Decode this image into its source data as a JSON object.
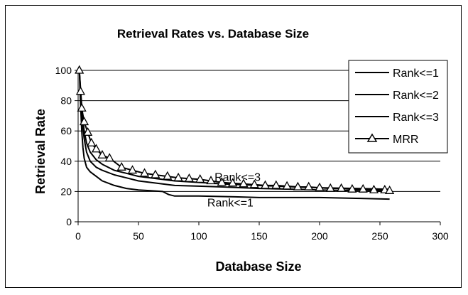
{
  "chart_data": {
    "type": "line",
    "title": "Retrieval Rates vs. Database Size",
    "xlabel": "Database Size",
    "ylabel": "Retrieval Rate",
    "xlim": [
      0,
      300
    ],
    "ylim": [
      0,
      100
    ],
    "xticks": [
      0,
      50,
      100,
      150,
      200,
      250,
      300
    ],
    "yticks": [
      0,
      20,
      40,
      60,
      80,
      100
    ],
    "grid": "horizontal",
    "legend_position": "right",
    "annotations": [
      {
        "text": "Rank<=3",
        "x": 113,
        "y": 27
      },
      {
        "text": "Rank<=1",
        "x": 107,
        "y": 10
      }
    ],
    "series": [
      {
        "name": "Rank<=1",
        "marker": "none",
        "x": [
          1,
          2,
          3,
          4,
          5,
          7,
          10,
          15,
          20,
          30,
          40,
          50,
          60,
          70,
          75,
          80,
          100,
          130,
          150,
          180,
          200,
          230,
          258
        ],
        "y": [
          100,
          78,
          60,
          49,
          42,
          36,
          33,
          30,
          27,
          24,
          22,
          21,
          20.5,
          20,
          18,
          17,
          17,
          16.5,
          16,
          16,
          16,
          15.5,
          15
        ]
      },
      {
        "name": "Rank<=2",
        "marker": "none",
        "x": [
          1,
          2,
          3,
          4,
          5,
          7,
          10,
          15,
          20,
          30,
          40,
          50,
          60,
          70,
          80,
          100,
          120,
          150,
          180,
          200,
          230,
          258
        ],
        "y": [
          100,
          85,
          72,
          62,
          55,
          46,
          40,
          36,
          34,
          31,
          29,
          27,
          26,
          25,
          24,
          23.5,
          23,
          22,
          21.5,
          21,
          20.5,
          20
        ]
      },
      {
        "name": "Rank<=3",
        "marker": "none",
        "x": [
          1,
          2,
          3,
          4,
          5,
          7,
          10,
          15,
          20,
          30,
          40,
          50,
          60,
          70,
          80,
          100,
          120,
          150,
          180,
          200,
          230,
          258
        ],
        "y": [
          100,
          88,
          76,
          67,
          60,
          52,
          46,
          41,
          38,
          34,
          32,
          30,
          29,
          28,
          27,
          26,
          25,
          24,
          23,
          22.5,
          22,
          21.5
        ]
      },
      {
        "name": "MRR",
        "marker": "triangle",
        "x": [
          1,
          2,
          3,
          5,
          8,
          11,
          15,
          20,
          26,
          36,
          45,
          55,
          64,
          74,
          83,
          92,
          101,
          110,
          119,
          128,
          137,
          146,
          155,
          164,
          173,
          182,
          191,
          200,
          209,
          218,
          227,
          236,
          245,
          254,
          258
        ],
        "y": [
          100,
          86,
          75,
          66,
          59,
          52,
          48,
          44,
          42,
          36,
          34,
          32,
          31,
          30,
          29,
          28.5,
          28,
          27,
          26,
          25.5,
          25,
          24.5,
          24,
          24,
          23.5,
          23,
          23,
          22.5,
          22,
          22,
          21.5,
          21.5,
          21,
          21,
          20.5
        ]
      }
    ]
  }
}
